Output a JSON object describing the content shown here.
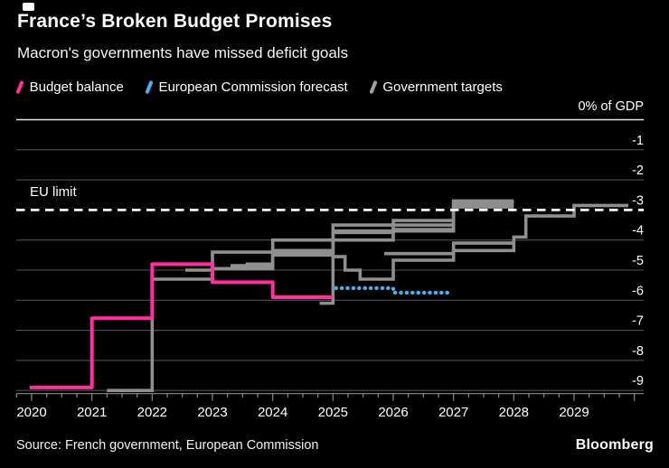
{
  "header": {
    "title": "France’s Broken Budget Promises",
    "subtitle": "Macron's governments have missed deficit goals"
  },
  "legend": [
    {
      "label": "Budget balance",
      "color": "#ff2fa0"
    },
    {
      "label": "European Commission forecast",
      "color": "#45b1f2"
    },
    {
      "label": "Government targets",
      "color": "#a3a3a3"
    }
  ],
  "footer": {
    "source": "Source: French government, European Commission",
    "logo": "Bloomberg"
  },
  "colors": {
    "background": "#000000",
    "budget_balance": "#ff2fa0",
    "ec_forecast": "#45b1f2",
    "government_targets": "#8f8f8f",
    "gridline": "#4f4f4f",
    "zero_line": "#e8e8e8",
    "axis": "#8a8a8a",
    "eu_limit_line": "#ffffff",
    "text": "#ffffff"
  },
  "chart_data": {
    "type": "step-line",
    "title": "France's Broken Budget Promises",
    "subtitle": "Macron's governments have missed deficit goals",
    "unit_label": "0% of GDP",
    "annotation": {
      "label": "EU limit",
      "value": -3,
      "style": "dashed-white-line"
    },
    "x_axis": {
      "range": [
        2019.75,
        2030.15
      ],
      "ticks": [
        2020,
        2021,
        2022,
        2023,
        2024,
        2025,
        2026,
        2027,
        2028,
        2029
      ],
      "tick_labels": [
        "2020",
        "2021",
        "2022",
        "2023",
        "2024",
        "2025",
        "2026",
        "2027",
        "2028",
        "2029"
      ],
      "minor_tick_interval": 0.25
    },
    "y_axis": {
      "range": [
        0,
        -9.3
      ],
      "ticks": [
        -1,
        -2,
        -3,
        -4,
        -5,
        -6,
        -7,
        -8,
        -9
      ],
      "tick_labels": [
        "-1",
        "-2",
        "-3",
        "-4",
        "-5",
        "-6",
        "-7",
        "-8",
        "-9"
      ],
      "zero_line": true,
      "grid": true
    },
    "legend_position": "top-left",
    "series": [
      {
        "name": "Government targets (2021 vintage)",
        "layer": 1,
        "color": "#8f8f8f",
        "style": "solid",
        "width": 3.6,
        "steps": [
          [
            2021.25,
            2022,
            -9.0
          ],
          [
            2022,
            2023,
            -5.3
          ],
          [
            2023,
            2024,
            -4.4
          ],
          [
            2024,
            2025,
            -4.0
          ],
          [
            2025,
            2026,
            -3.5
          ],
          [
            2026,
            2027,
            -3.35
          ],
          [
            2027,
            2028,
            -2.8
          ]
        ]
      },
      {
        "name": "Government targets (2022 vintage)",
        "layer": 1,
        "color": "#8f8f8f",
        "style": "solid",
        "width": 3.6,
        "steps": [
          [
            2022.55,
            2023,
            -5.0
          ],
          [
            2023,
            2024,
            -4.95
          ],
          [
            2024,
            2025,
            -4.5
          ],
          [
            2025,
            2026,
            -4.0
          ],
          [
            2026,
            2027,
            -3.5
          ],
          [
            2027,
            2028,
            -2.9
          ]
        ]
      },
      {
        "name": "Government targets (spring 2023 vintage)",
        "layer": 1,
        "color": "#8f8f8f",
        "style": "solid",
        "width": 3.6,
        "steps": [
          [
            2023.3,
            2024,
            -4.85
          ],
          [
            2024,
            2025,
            -4.4
          ],
          [
            2025,
            2026,
            -3.7
          ],
          [
            2026,
            2027,
            -3.65
          ],
          [
            2027,
            2028,
            -2.7
          ]
        ]
      },
      {
        "name": "Government targets (autumn 2023 vintage)",
        "layer": 1,
        "color": "#8f8f8f",
        "style": "solid",
        "width": 3.6,
        "steps": [
          [
            2023.55,
            2024,
            -4.8
          ],
          [
            2024,
            2025,
            -4.35
          ],
          [
            2025,
            2026,
            -3.75
          ],
          [
            2026,
            2027,
            -3.7
          ],
          [
            2027,
            2028,
            -2.75
          ]
        ]
      },
      {
        "name": "Government targets (2024 vintage)",
        "layer": 1,
        "color": "#8f8f8f",
        "style": "solid",
        "width": 3.6,
        "steps": [
          [
            2024.78,
            2025,
            -6.1
          ],
          [
            2025,
            2025.2,
            -4.55
          ],
          [
            2025.2,
            2025.45,
            -5.0
          ],
          [
            2025.45,
            2026,
            -5.3
          ],
          [
            2026,
            2027,
            -4.67
          ],
          [
            2027,
            2028,
            -4.35
          ],
          [
            2028,
            2028.2,
            -3.9
          ],
          [
            2028.2,
            2029,
            -3.2
          ],
          [
            2029,
            2029.9,
            -2.85
          ]
        ]
      },
      {
        "name": "Government targets (2025 vintage)",
        "layer": 1,
        "color": "#8f8f8f",
        "style": "solid",
        "width": 3.6,
        "steps": [
          [
            2025.85,
            2027,
            -4.45
          ],
          [
            2027,
            2028,
            -4.1
          ]
        ]
      },
      {
        "name": "Budget balance",
        "layer": 2,
        "color": "#ff2fa0",
        "style": "solid",
        "width": 4,
        "steps": [
          [
            2019.97,
            2021,
            -8.9
          ],
          [
            2021,
            2022,
            -6.6
          ],
          [
            2022,
            2023,
            -4.8
          ],
          [
            2023,
            2024,
            -5.4
          ],
          [
            2024,
            2025,
            -5.9
          ]
        ]
      },
      {
        "name": "European Commission forecast",
        "layer": 2,
        "color": "#45b1f2",
        "style": "dotted",
        "width": 4.4,
        "steps": [
          [
            2025.05,
            2026,
            -5.6
          ],
          [
            2026,
            2026.9,
            -5.75
          ]
        ]
      }
    ]
  }
}
